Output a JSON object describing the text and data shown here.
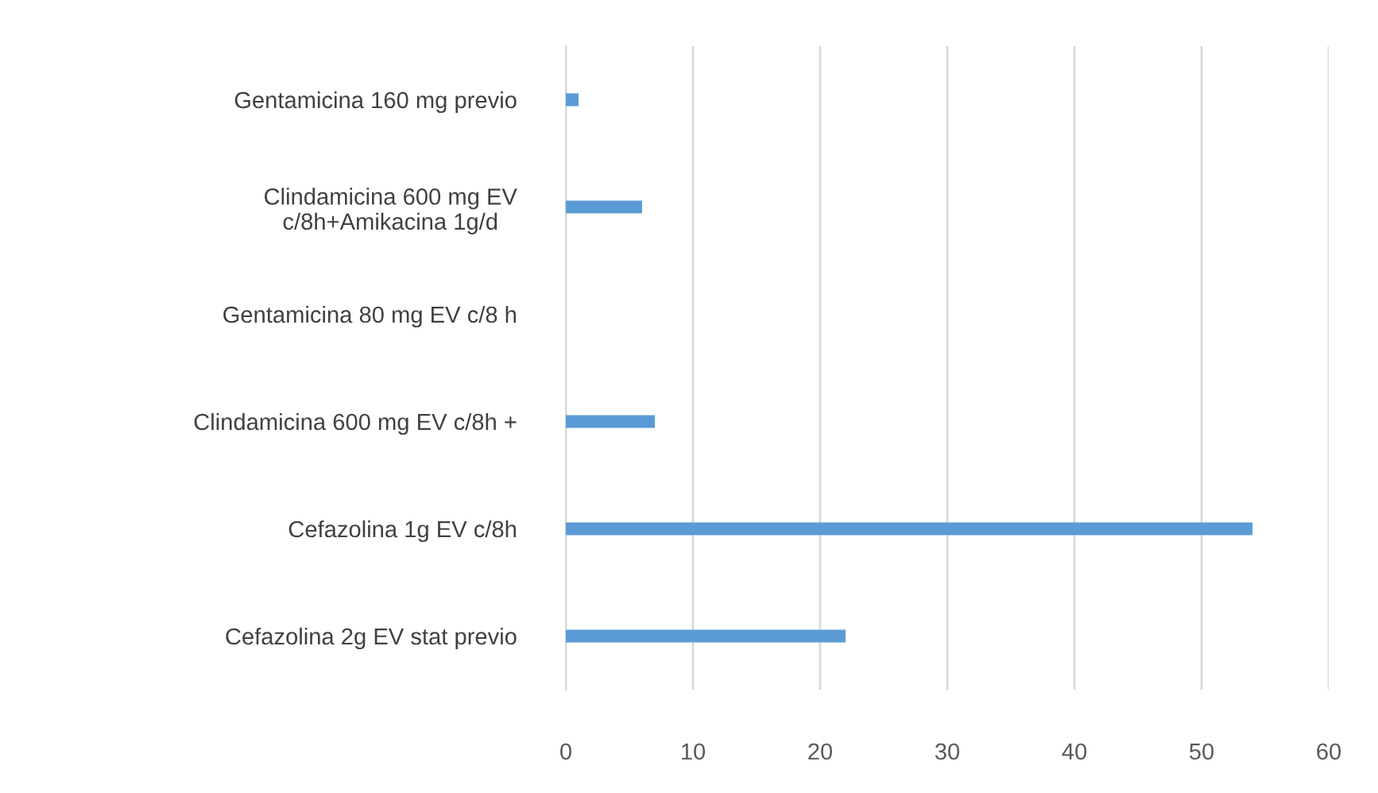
{
  "chart_data": {
    "type": "bar",
    "orientation": "horizontal",
    "categories": [
      "Gentamicina 160 mg previo",
      "Clindamicina 600 mg EV\nc/8h+Amikacina 1g/d",
      "Gentamicina 80 mg EV c/8 h",
      "Clindamicina 600 mg EV c/8h +",
      "Cefazolina 1g EV c/8h",
      "Cefazolina 2g EV stat previo"
    ],
    "values": [
      1,
      6,
      0,
      7,
      54,
      22
    ],
    "color": "#5b9bd5",
    "xlim": [
      0,
      60
    ],
    "xticks": [
      0,
      10,
      20,
      30,
      40,
      50,
      60
    ],
    "grid": "x",
    "legend": false
  }
}
